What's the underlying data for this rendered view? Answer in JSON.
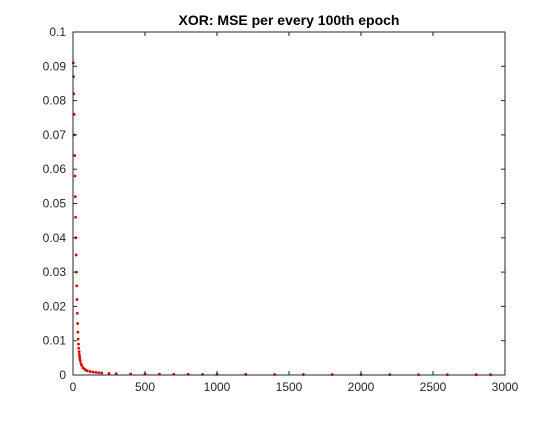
{
  "chart_data": {
    "type": "scatter",
    "title": "XOR: MSE per every 100th epoch",
    "xlabel": "",
    "ylabel": "",
    "xlim": [
      0,
      3000
    ],
    "ylim": [
      0,
      0.1
    ],
    "x_ticks": [
      0,
      500,
      1000,
      1500,
      2000,
      2500,
      3000
    ],
    "x_tick_labels": [
      "0",
      "500",
      "1000",
      "1500",
      "2000",
      "2500",
      "3000"
    ],
    "y_ticks": [
      0,
      0.01,
      0.02,
      0.03,
      0.04,
      0.05,
      0.06,
      0.07,
      0.08,
      0.09,
      0.1
    ],
    "y_tick_labels": [
      "0",
      "0.01",
      "0.02",
      "0.03",
      "0.04",
      "0.05",
      "0.06",
      "0.07",
      "0.08",
      "0.09",
      "0.1"
    ],
    "grid": false,
    "box": true,
    "marker_color": "#e00000",
    "series": [
      {
        "x": [
          2,
          4,
          6,
          8,
          10,
          12,
          14,
          16,
          18,
          20,
          22,
          24,
          26,
          28,
          30,
          32,
          34,
          36,
          38,
          40,
          42,
          44,
          46,
          48,
          50,
          55,
          60,
          70,
          80,
          90,
          100,
          120,
          140,
          160,
          180,
          200,
          250,
          300,
          400,
          500,
          600,
          700,
          800,
          900,
          1000,
          1200,
          1400,
          1600,
          1800,
          2000,
          2200,
          2400,
          2600,
          2800,
          2900
        ],
        "y": [
          0.091,
          0.087,
          0.082,
          0.076,
          0.07,
          0.064,
          0.058,
          0.052,
          0.046,
          0.04,
          0.035,
          0.03,
          0.026,
          0.022,
          0.018,
          0.015,
          0.0125,
          0.0105,
          0.009,
          0.0078,
          0.0068,
          0.006,
          0.0053,
          0.0047,
          0.0042,
          0.0034,
          0.0028,
          0.0021,
          0.0017,
          0.0014,
          0.0012,
          0.001,
          0.00085,
          0.00075,
          0.00066,
          0.0006,
          0.00048,
          0.0004,
          0.00032,
          0.00027,
          0.00024,
          0.00022,
          0.0002,
          0.00019,
          0.00018,
          0.00016,
          0.00015,
          0.00014,
          0.00013,
          0.00012,
          0.00011,
          0.0001,
          0.0001,
          9e-05,
          9e-05
        ]
      }
    ]
  }
}
